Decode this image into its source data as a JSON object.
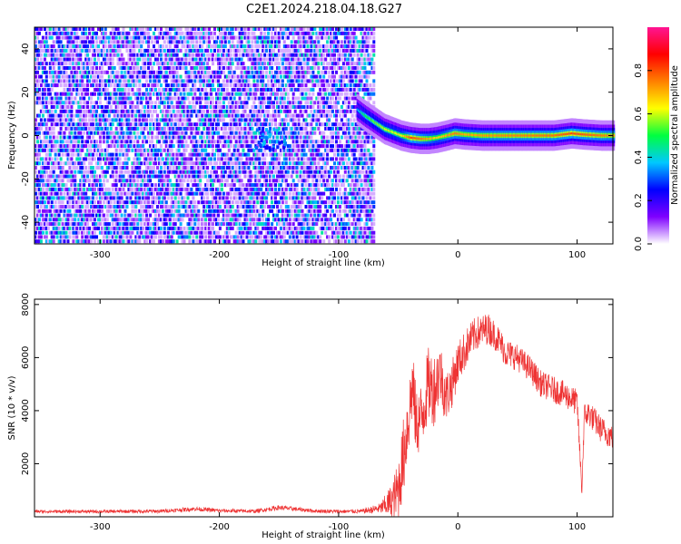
{
  "title": "C2E1.2024.218.04.18.G27",
  "chart_data": [
    {
      "type": "heatmap",
      "title": "C2E1.2024.218.04.18.G27",
      "xlabel": "Height of straight line (km)",
      "ylabel": "Frequency (Hz)",
      "xlim": [
        -355,
        130
      ],
      "ylim": [
        -50,
        50
      ],
      "x_ticks": [
        -300,
        -200,
        -100,
        0,
        100
      ],
      "y_ticks": [
        -40,
        -20,
        0,
        20,
        40
      ],
      "colorbar": {
        "label": "Normalized spectral amplitude",
        "range": [
          0,
          1
        ],
        "ticks": [
          "0.0",
          "0.2",
          "0.4",
          "0.6",
          "0.8"
        ],
        "colormap": [
          "#ffffff",
          "#7f00ff",
          "#0000ff",
          "#00c8ff",
          "#00ff40",
          "#ffff00",
          "#ff8000",
          "#ff0000",
          "#ff1493"
        ]
      },
      "noise_region": {
        "x_range": [
          -355,
          -70
        ],
        "mean_amplitude": 0.2
      },
      "signal_track": {
        "x": [
          -85,
          -78,
          -70,
          -62,
          -55,
          -48,
          -40,
          -32,
          -25,
          -18,
          -10,
          -3,
          5,
          20,
          40,
          60,
          80,
          95,
          105,
          120,
          130
        ],
        "frequency": [
          12,
          9,
          6,
          3,
          1.5,
          0,
          -1,
          -1.5,
          -1.5,
          -1,
          0,
          1,
          0.5,
          0,
          0,
          0,
          0,
          1,
          0.5,
          0,
          0
        ],
        "amplitude": [
          0.35,
          0.5,
          0.55,
          0.6,
          0.6,
          0.62,
          0.8,
          0.75,
          0.7,
          0.65,
          0.7,
          0.75,
          0.7,
          0.72,
          0.74,
          0.75,
          0.76,
          0.8,
          0.78,
          0.75,
          0.72
        ]
      },
      "grid": false
    },
    {
      "type": "line",
      "xlabel": "Height of straight line (km)",
      "ylabel": "SNR (10 * v/v)",
      "xlim": [
        -355,
        130
      ],
      "ylim": [
        0,
        8200
      ],
      "x_ticks": [
        -300,
        -200,
        -100,
        0,
        100
      ],
      "y_ticks": [
        2000,
        4000,
        6000,
        8000
      ],
      "color": "#ee3333",
      "series": [
        {
          "x": [
            -355,
            -300,
            -250,
            -220,
            -200,
            -170,
            -150,
            -120,
            -100,
            -80,
            -65,
            -55,
            -50,
            -45,
            -40,
            -38,
            -35,
            -30,
            -25,
            -20,
            -15,
            -10,
            -5,
            0,
            5,
            10,
            15,
            20,
            25,
            30,
            35,
            40,
            50,
            60,
            70,
            80,
            90,
            100,
            104,
            106,
            110,
            120,
            130
          ],
          "y": [
            200,
            200,
            210,
            300,
            230,
            210,
            350,
            220,
            200,
            210,
            320,
            600,
            1000,
            2500,
            4200,
            5000,
            3500,
            3800,
            5000,
            4800,
            5500,
            4500,
            5000,
            5800,
            6200,
            6600,
            6900,
            7000,
            7100,
            6900,
            6600,
            6200,
            6000,
            5600,
            5000,
            4800,
            4600,
            4300,
            1000,
            3800,
            3900,
            3300,
            3000
          ],
          "noise": [
            60,
            60,
            70,
            80,
            70,
            70,
            90,
            70,
            70,
            80,
            200,
            700,
            1200,
            1500,
            1400,
            1400,
            1300,
            1300,
            1400,
            1400,
            1200,
            1000,
            900,
            800,
            750,
            700,
            650,
            600,
            600,
            550,
            550,
            550,
            500,
            500,
            500,
            500,
            500,
            500,
            300,
            500,
            500,
            500,
            500
          ]
        }
      ],
      "grid": false
    }
  ]
}
